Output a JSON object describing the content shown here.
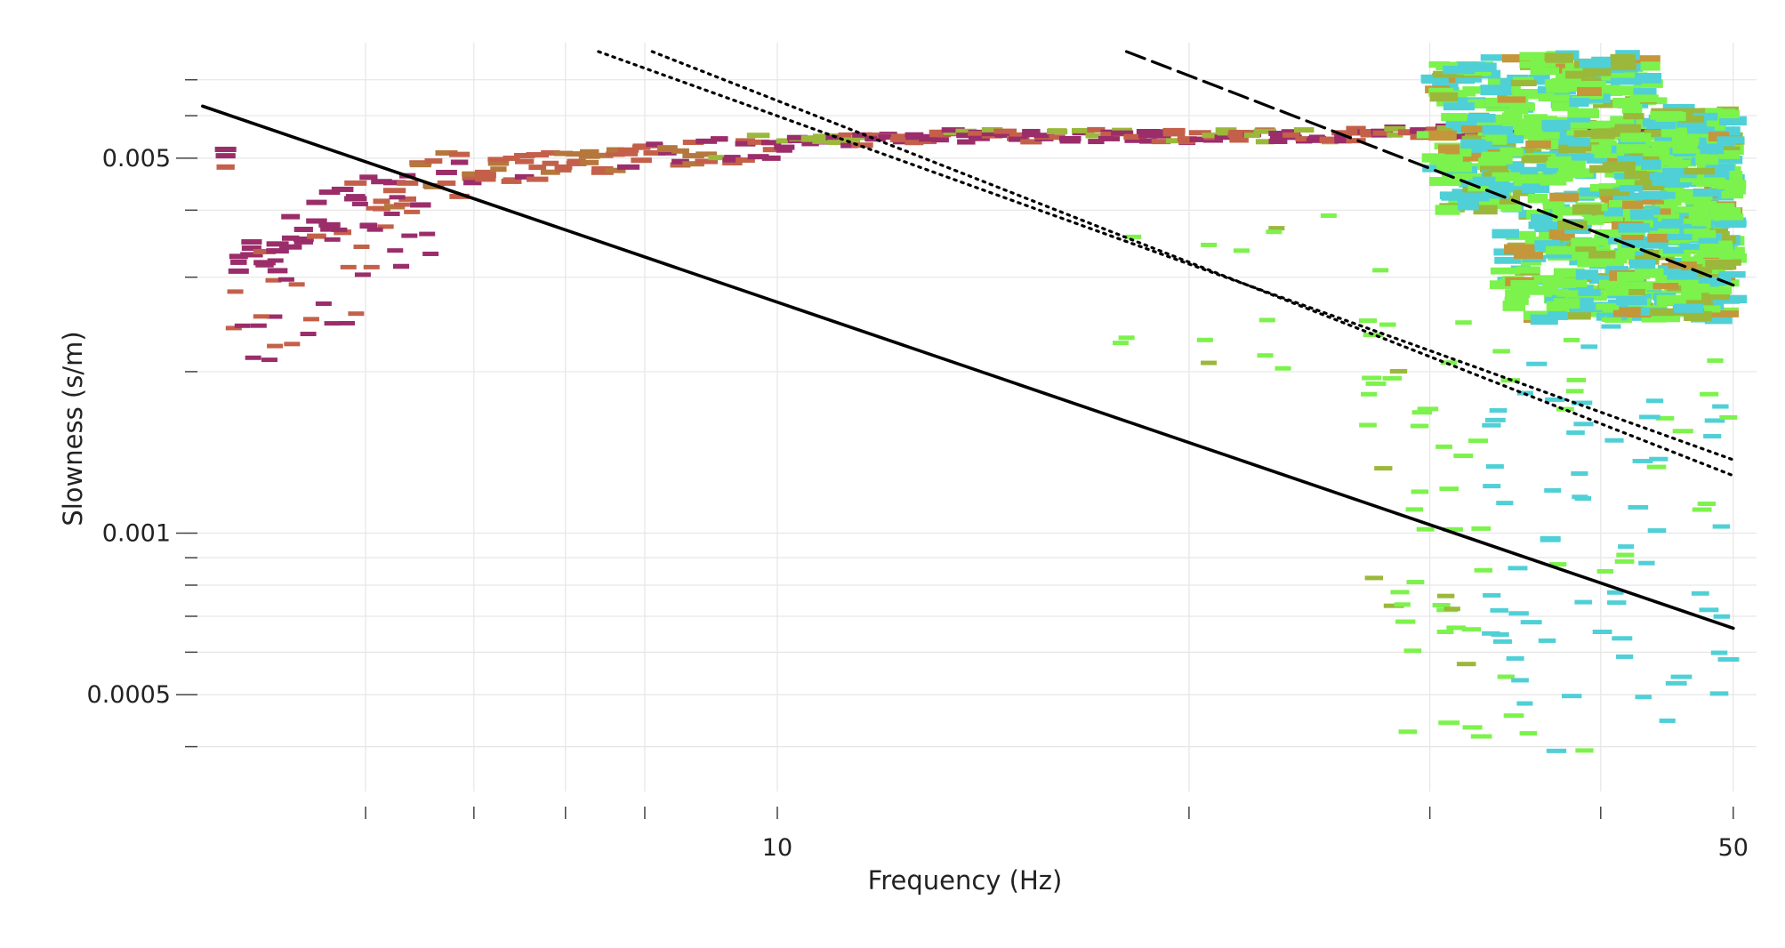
{
  "chart_data": {
    "type": "heatmap",
    "title": "",
    "xlabel": "Frequency (Hz)",
    "ylabel": "Slowness (s/m)",
    "x_scale": "log",
    "y_scale": "log",
    "xlim": [
      3.7,
      52
    ],
    "ylim": [
      0.00033,
      0.0079
    ],
    "grid": true,
    "x_ticks": [
      {
        "value": 10,
        "label": "10"
      },
      {
        "value": 50,
        "label": "50"
      }
    ],
    "x_minor_ticks": [
      5,
      6,
      7,
      8,
      20,
      30,
      40
    ],
    "y_ticks": [
      {
        "value": 0.0005,
        "label": "0.0005"
      },
      {
        "value": 0.001,
        "label": "0.001"
      },
      {
        "value": 0.005,
        "label": "0.005"
      }
    ],
    "y_minor_ticks": [
      0.0004,
      0.0006,
      0.0007,
      0.0008,
      0.0009,
      0.002,
      0.003,
      0.004,
      0.006,
      0.007
    ],
    "colors": {
      "low_freq": "#9b2d6a",
      "mid_freq": "#c4604a",
      "transition": "#9bb83a",
      "high_green": "#7cf24c",
      "high_cyan": "#4fd0d6",
      "line": "#000000",
      "grid": "#e6e6e6"
    },
    "series": [
      {
        "style": "solid",
        "points": [
          [
            3.8,
            0.00625
          ],
          [
            50,
            0.000665
          ]
        ]
      },
      {
        "style": "dotted",
        "points": [
          [
            7.4,
            0.0079
          ],
          [
            50,
            0.00137
          ]
        ]
      },
      {
        "style": "dotted",
        "points": [
          [
            8.1,
            0.0079
          ],
          [
            50,
            0.00128
          ]
        ]
      },
      {
        "style": "dashed",
        "points": [
          [
            18,
            0.0079
          ],
          [
            50,
            0.0029
          ]
        ]
      }
    ],
    "main_ridge": [
      [
        4.0,
        0.003
      ],
      [
        4.3,
        0.0034
      ],
      [
        4.6,
        0.0038
      ],
      [
        4.9,
        0.0041
      ],
      [
        5.3,
        0.0044
      ],
      [
        5.8,
        0.0046
      ],
      [
        6.4,
        0.00475
      ],
      [
        7.2,
        0.0049
      ],
      [
        8.2,
        0.00505
      ],
      [
        9.5,
        0.0052
      ],
      [
        11,
        0.0054
      ],
      [
        13,
        0.0055
      ],
      [
        16,
        0.0055
      ],
      [
        20,
        0.0055
      ],
      [
        25,
        0.0055
      ],
      [
        30,
        0.0056
      ],
      [
        36,
        0.0057
      ],
      [
        42,
        0.0056
      ],
      [
        50,
        0.0054
      ]
    ],
    "high_cloud": {
      "freq_range": [
        30,
        50
      ],
      "slowness_range": [
        0.0025,
        0.0078
      ]
    },
    "scatter_tail": {
      "freq_range": [
        27,
        50
      ],
      "slowness_range": [
        0.00038,
        0.0025
      ]
    }
  }
}
